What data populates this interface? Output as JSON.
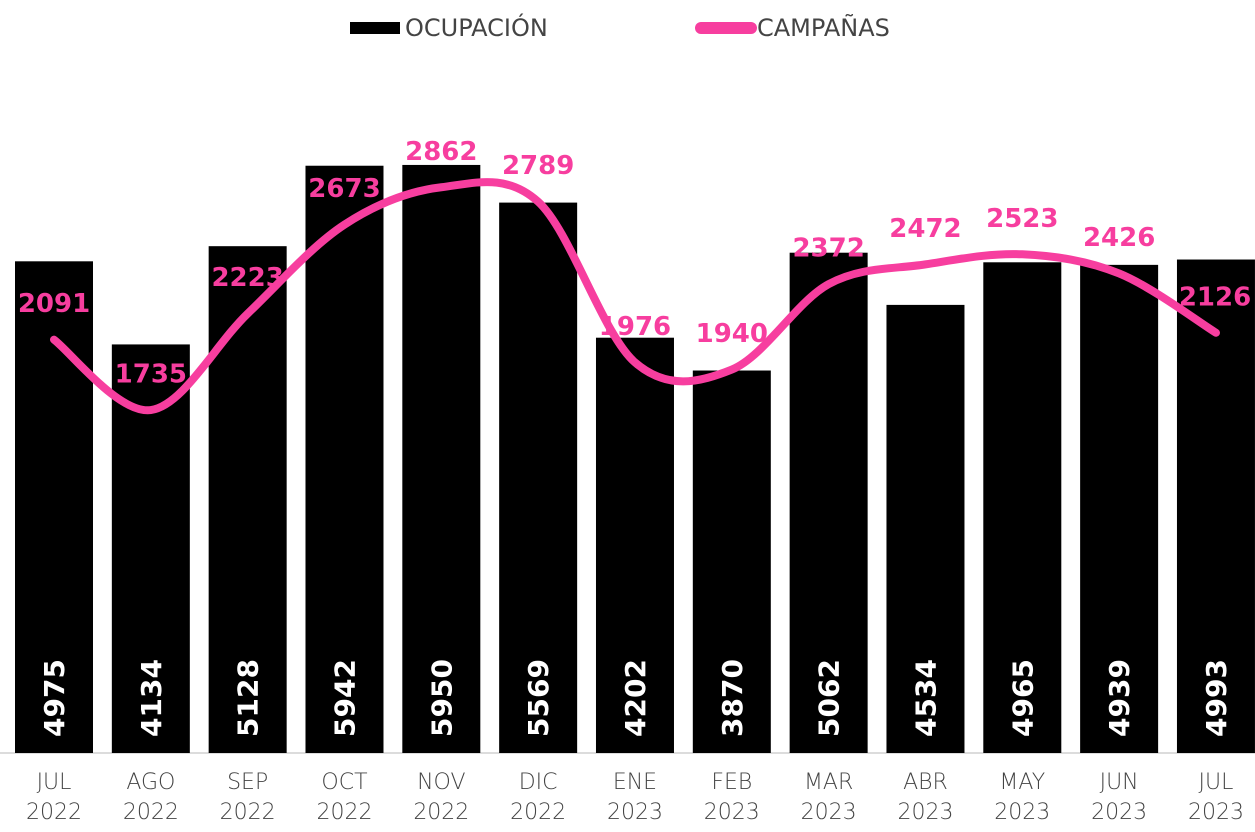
{
  "chart_data": {
    "type": "bar-line",
    "categories": [
      "JUL 2022",
      "AGO 2022",
      "SEP 2022",
      "OCT 2022",
      "NOV 2022",
      "DIC 2022",
      "ENE 2023",
      "FEB 2023",
      "MAR 2023",
      "ABR 2023",
      "MAY 2023",
      "JUN 2023",
      "JUL 2023"
    ],
    "series": [
      {
        "name": "OCUPACIÓN",
        "type": "bar",
        "color": "#000000",
        "values": [
          4975,
          4134,
          5128,
          5942,
          5950,
          5569,
          4202,
          3870,
          5062,
          4534,
          4965,
          4939,
          4993
        ]
      },
      {
        "name": "CAMPAÑAS",
        "type": "line",
        "axis": "y2",
        "color": "#f73e9f",
        "values": [
          2091,
          1735,
          2223,
          2673,
          2862,
          2789,
          1976,
          1940,
          2372,
          2472,
          2523,
          2426,
          2126
        ]
      }
    ],
    "ylim": [
      0,
      6000
    ],
    "y2lim": [
      0,
      3000
    ],
    "legend": "top"
  }
}
